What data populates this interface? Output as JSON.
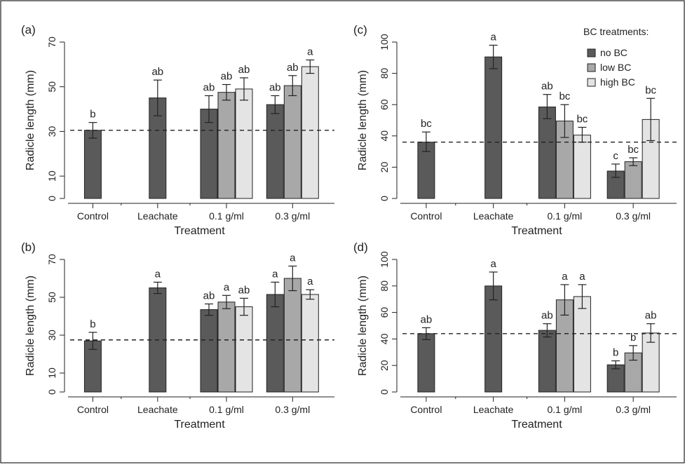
{
  "figure": {
    "x_label": "Treatment",
    "y_label": "Radicle length (mm)",
    "legend": {
      "title": "BC treatments:",
      "items": [
        "no BC",
        "low BC",
        "high BC"
      ],
      "placement": "top-right of panel (c)"
    }
  },
  "colors": {
    "no BC": "#5a5a5a",
    "low BC": "#a8a8a8",
    "high BC": "#e4e4e4",
    "edge": "#222222"
  },
  "chart_data": [
    {
      "type": "bar",
      "panel": "(a)",
      "categories": [
        "Control",
        "Leachate",
        "0.1 g/ml",
        "0.3 g/ml"
      ],
      "ylim": [
        0,
        70
      ],
      "yticks": [
        0,
        10,
        30,
        50,
        70
      ],
      "reference_line": 30.5,
      "bars": [
        {
          "category": "Control",
          "series": "no BC",
          "value": 30.5,
          "err_low": 27.0,
          "err_high": 34.0,
          "letter": "b"
        },
        {
          "category": "Leachate",
          "series": "no BC",
          "value": 45.0,
          "err_low": 37.0,
          "err_high": 53.0,
          "letter": "ab"
        },
        {
          "category": "0.1 g/ml",
          "series": "no BC",
          "value": 40.0,
          "err_low": 34.0,
          "err_high": 46.0,
          "letter": "ab"
        },
        {
          "category": "0.1 g/ml",
          "series": "low BC",
          "value": 47.5,
          "err_low": 44.0,
          "err_high": 51.0,
          "letter": "ab"
        },
        {
          "category": "0.1 g/ml",
          "series": "high BC",
          "value": 49.0,
          "err_low": 44.0,
          "err_high": 54.0,
          "letter": "ab"
        },
        {
          "category": "0.3 g/ml",
          "series": "no BC",
          "value": 42.0,
          "err_low": 38.0,
          "err_high": 46.0,
          "letter": "ab"
        },
        {
          "category": "0.3 g/ml",
          "series": "low BC",
          "value": 50.5,
          "err_low": 46.0,
          "err_high": 55.0,
          "letter": "ab"
        },
        {
          "category": "0.3 g/ml",
          "series": "high BC",
          "value": 59.0,
          "err_low": 56.0,
          "err_high": 62.0,
          "letter": "a"
        }
      ]
    },
    {
      "type": "bar",
      "panel": "(c)",
      "categories": [
        "Control",
        "Leachate",
        "0.1 g/ml",
        "0.3 g/ml"
      ],
      "ylim": [
        0,
        100
      ],
      "yticks": [
        0,
        20,
        40,
        60,
        80,
        100
      ],
      "reference_line": 36,
      "bars": [
        {
          "category": "Control",
          "series": "no BC",
          "value": 36.0,
          "err_low": 30.0,
          "err_high": 42.5,
          "letter": "bc"
        },
        {
          "category": "Leachate",
          "series": "no BC",
          "value": 90.5,
          "err_low": 83.0,
          "err_high": 98.0,
          "letter": "a"
        },
        {
          "category": "0.1 g/ml",
          "series": "no BC",
          "value": 58.5,
          "err_low": 51.0,
          "err_high": 66.5,
          "letter": "ab"
        },
        {
          "category": "0.1 g/ml",
          "series": "low BC",
          "value": 49.5,
          "err_low": 39.0,
          "err_high": 60.0,
          "letter": "bc"
        },
        {
          "category": "0.1 g/ml",
          "series": "high BC",
          "value": 40.5,
          "err_low": 36.0,
          "err_high": 45.5,
          "letter": "bc"
        },
        {
          "category": "0.3 g/ml",
          "series": "no BC",
          "value": 17.5,
          "err_low": 13.5,
          "err_high": 22.0,
          "letter": "c"
        },
        {
          "category": "0.3 g/ml",
          "series": "low BC",
          "value": 23.5,
          "err_low": 21.0,
          "err_high": 26.0,
          "letter": "bc"
        },
        {
          "category": "0.3 g/ml",
          "series": "high BC",
          "value": 50.5,
          "err_low": 37.0,
          "err_high": 64.0,
          "letter": "bc"
        }
      ]
    },
    {
      "type": "bar",
      "panel": "(b)",
      "categories": [
        "Control",
        "Leachate",
        "0.1 g/ml",
        "0.3 g/ml"
      ],
      "ylim": [
        0,
        70
      ],
      "yticks": [
        0,
        10,
        30,
        50,
        70
      ],
      "reference_line": 27.5,
      "bars": [
        {
          "category": "Control",
          "series": "no BC",
          "value": 27.0,
          "err_low": 22.5,
          "err_high": 31.5,
          "letter": "b"
        },
        {
          "category": "Leachate",
          "series": "no BC",
          "value": 55.0,
          "err_low": 52.0,
          "err_high": 58.0,
          "letter": "a"
        },
        {
          "category": "0.1 g/ml",
          "series": "no BC",
          "value": 43.5,
          "err_low": 40.5,
          "err_high": 46.5,
          "letter": "ab"
        },
        {
          "category": "0.1 g/ml",
          "series": "low BC",
          "value": 47.5,
          "err_low": 44.0,
          "err_high": 51.0,
          "letter": "a"
        },
        {
          "category": "0.1 g/ml",
          "series": "high BC",
          "value": 45.0,
          "err_low": 40.5,
          "err_high": 49.5,
          "letter": "ab"
        },
        {
          "category": "0.3 g/ml",
          "series": "no BC",
          "value": 51.5,
          "err_low": 45.0,
          "err_high": 58.0,
          "letter": "a"
        },
        {
          "category": "0.3 g/ml",
          "series": "low BC",
          "value": 60.0,
          "err_low": 53.5,
          "err_high": 66.5,
          "letter": "a"
        },
        {
          "category": "0.3 g/ml",
          "series": "high BC",
          "value": 51.5,
          "err_low": 49.0,
          "err_high": 54.0,
          "letter": "a"
        }
      ]
    },
    {
      "type": "bar",
      "panel": "(d)",
      "categories": [
        "Control",
        "Leachate",
        "0.1 g/ml",
        "0.3 g/ml"
      ],
      "ylim": [
        0,
        100
      ],
      "yticks": [
        0,
        20,
        40,
        60,
        80,
        100
      ],
      "reference_line": 44,
      "bars": [
        {
          "category": "Control",
          "series": "no BC",
          "value": 44.0,
          "err_low": 39.5,
          "err_high": 48.5,
          "letter": "ab"
        },
        {
          "category": "Leachate",
          "series": "no BC",
          "value": 80.0,
          "err_low": 69.5,
          "err_high": 90.5,
          "letter": "a"
        },
        {
          "category": "0.1 g/ml",
          "series": "no BC",
          "value": 46.5,
          "err_low": 41.5,
          "err_high": 51.5,
          "letter": "ab"
        },
        {
          "category": "0.1 g/ml",
          "series": "low BC",
          "value": 69.5,
          "err_low": 58.0,
          "err_high": 81.0,
          "letter": "a"
        },
        {
          "category": "0.1 g/ml",
          "series": "high BC",
          "value": 72.0,
          "err_low": 63.0,
          "err_high": 81.0,
          "letter": "a"
        },
        {
          "category": "0.3 g/ml",
          "series": "no BC",
          "value": 20.5,
          "err_low": 17.5,
          "err_high": 23.5,
          "letter": "b"
        },
        {
          "category": "0.3 g/ml",
          "series": "low BC",
          "value": 29.5,
          "err_low": 24.0,
          "err_high": 35.0,
          "letter": "b"
        },
        {
          "category": "0.3 g/ml",
          "series": "high BC",
          "value": 44.5,
          "err_low": 37.5,
          "err_high": 51.5,
          "letter": "ab"
        }
      ]
    }
  ]
}
